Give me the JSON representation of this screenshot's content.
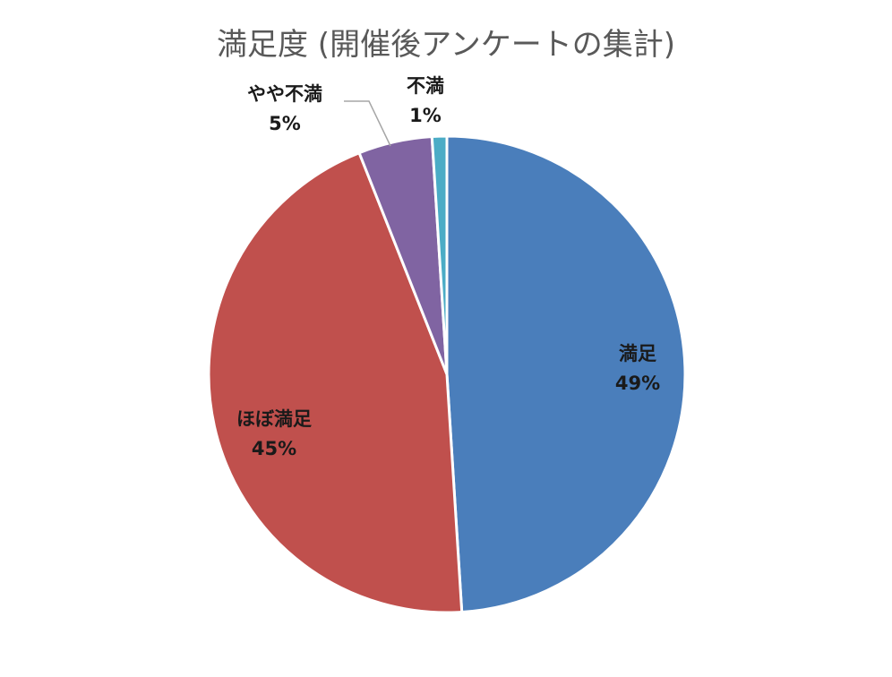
{
  "chart_data": {
    "type": "pie",
    "title": "満足度 (開催後アンケートの集計)",
    "categories": [
      "満足",
      "ほぼ満足",
      "やや不満",
      "不満"
    ],
    "values": [
      49,
      45,
      5,
      1
    ],
    "value_labels": [
      "49%",
      "45%",
      "5%",
      "1%"
    ],
    "colors": [
      "#4a7ebb",
      "#c0504d",
      "#8064a2",
      "#4bacc6"
    ],
    "start_angle": "12 o'clock",
    "direction": "clockwise",
    "legend": "none",
    "data_labels": "category and percentage"
  }
}
